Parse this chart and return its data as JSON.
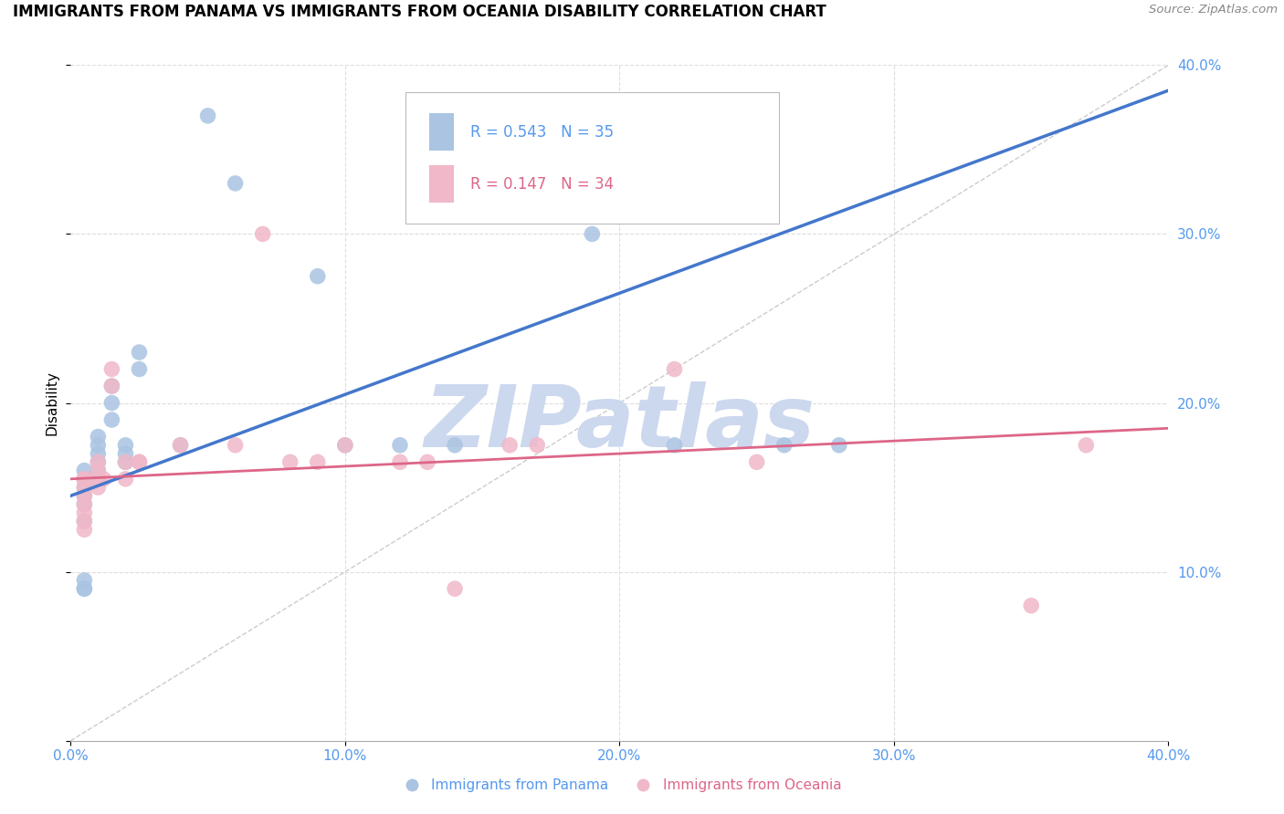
{
  "title": "IMMIGRANTS FROM PANAMA VS IMMIGRANTS FROM OCEANIA DISABILITY CORRELATION CHART",
  "source": "Source: ZipAtlas.com",
  "ylabel": "Disability",
  "x_min": 0.0,
  "x_max": 0.4,
  "y_min": 0.0,
  "y_max": 0.4,
  "x_ticks": [
    0.0,
    0.1,
    0.2,
    0.3,
    0.4
  ],
  "y_ticks": [
    0.0,
    0.1,
    0.2,
    0.3,
    0.4
  ],
  "blue_r": 0.543,
  "blue_n": 35,
  "pink_r": 0.147,
  "pink_n": 34,
  "legend_label_blue": "Immigrants from Panama",
  "legend_label_pink": "Immigrants from Oceania",
  "blue_color": "#aac4e2",
  "blue_line_color": "#4477cc",
  "pink_color": "#f0b8c8",
  "pink_line_color": "#dd6688",
  "watermark_color": "#ccd8ee",
  "diagonal_color": "#cccccc",
  "grid_color": "#dddddd",
  "tick_color": "#5599ee",
  "blue_scatter_x": [
    0.005,
    0.005,
    0.005,
    0.005,
    0.005,
    0.005,
    0.005,
    0.005,
    0.005,
    0.005,
    0.01,
    0.01,
    0.01,
    0.01,
    0.01,
    0.01,
    0.015,
    0.015,
    0.015,
    0.02,
    0.02,
    0.02,
    0.025,
    0.025,
    0.04,
    0.05,
    0.06,
    0.09,
    0.1,
    0.12,
    0.14,
    0.19,
    0.22,
    0.26,
    0.28
  ],
  "blue_scatter_y": [
    0.155,
    0.16,
    0.155,
    0.15,
    0.145,
    0.14,
    0.13,
    0.09,
    0.09,
    0.095,
    0.17,
    0.165,
    0.16,
    0.155,
    0.175,
    0.18,
    0.19,
    0.2,
    0.21,
    0.165,
    0.175,
    0.17,
    0.22,
    0.23,
    0.175,
    0.37,
    0.33,
    0.275,
    0.175,
    0.175,
    0.175,
    0.3,
    0.175,
    0.175,
    0.175
  ],
  "pink_scatter_x": [
    0.005,
    0.005,
    0.005,
    0.005,
    0.005,
    0.005,
    0.005,
    0.005,
    0.01,
    0.01,
    0.01,
    0.01,
    0.012,
    0.015,
    0.015,
    0.02,
    0.02,
    0.025,
    0.025,
    0.04,
    0.06,
    0.07,
    0.08,
    0.09,
    0.1,
    0.12,
    0.13,
    0.14,
    0.16,
    0.17,
    0.22,
    0.25,
    0.35,
    0.37
  ],
  "pink_scatter_y": [
    0.155,
    0.155,
    0.15,
    0.145,
    0.14,
    0.135,
    0.13,
    0.125,
    0.165,
    0.16,
    0.155,
    0.15,
    0.155,
    0.21,
    0.22,
    0.165,
    0.155,
    0.165,
    0.165,
    0.175,
    0.175,
    0.3,
    0.165,
    0.165,
    0.175,
    0.165,
    0.165,
    0.09,
    0.175,
    0.175,
    0.22,
    0.165,
    0.08,
    0.175
  ],
  "blue_line_x0": 0.0,
  "blue_line_y0": 0.145,
  "blue_line_x1": 0.4,
  "blue_line_y1": 0.385,
  "pink_line_x0": 0.0,
  "pink_line_y0": 0.155,
  "pink_line_x1": 0.4,
  "pink_line_y1": 0.185
}
